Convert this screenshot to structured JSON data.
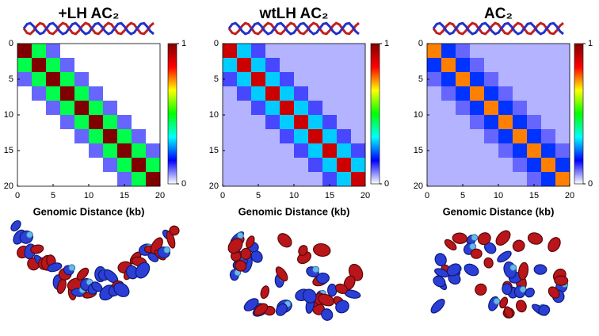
{
  "chart_data": [
    {
      "type": "heatmap",
      "title": "+LH AC₂",
      "xlabel": "Genomic Distance (kb)",
      "x": [
        1,
        3,
        5,
        7,
        9,
        11,
        13,
        15,
        17,
        19
      ],
      "y": [
        1,
        3,
        5,
        7,
        9,
        11,
        13,
        15,
        17,
        19
      ],
      "xlim": [
        0,
        20
      ],
      "ylim": [
        0,
        20
      ],
      "xticks": [
        0,
        5,
        10,
        15,
        20
      ],
      "yticks": [
        0,
        5,
        10,
        15,
        20
      ],
      "clim": [
        0,
        1
      ],
      "cticks": [
        0,
        1
      ],
      "colorscale": [
        "#ffffff",
        "#0000ff",
        "#00ffff",
        "#00ff00",
        "#ffff00",
        "#ff0000",
        "#800000"
      ],
      "z": [
        [
          1,
          0.45,
          0.1,
          0,
          0,
          0,
          0,
          0,
          0,
          0
        ],
        [
          0.45,
          1,
          0.45,
          0.1,
          0,
          0,
          0,
          0,
          0,
          0
        ],
        [
          0.1,
          0.45,
          1,
          0.45,
          0.1,
          0,
          0,
          0,
          0,
          0
        ],
        [
          0,
          0.1,
          0.45,
          1,
          0.45,
          0.1,
          0,
          0,
          0,
          0
        ],
        [
          0,
          0,
          0.1,
          0.45,
          1,
          0.45,
          0.1,
          0,
          0,
          0
        ],
        [
          0,
          0,
          0,
          0.1,
          0.45,
          1,
          0.45,
          0.1,
          0,
          0
        ],
        [
          0,
          0,
          0,
          0,
          0.1,
          0.45,
          1,
          0.45,
          0.1,
          0
        ],
        [
          0,
          0,
          0,
          0,
          0,
          0.1,
          0.45,
          1,
          0.45,
          0.1
        ],
        [
          0,
          0,
          0,
          0,
          0,
          0,
          0.1,
          0.45,
          1,
          0.45
        ],
        [
          0,
          0,
          0,
          0,
          0,
          0,
          0,
          0.1,
          0.45,
          1
        ]
      ]
    },
    {
      "type": "heatmap",
      "title": "wtLH AC₂",
      "xlabel": "Genomic Distance (kb)",
      "x": [
        1,
        3,
        5,
        7,
        9,
        11,
        13,
        15,
        17,
        19
      ],
      "y": [
        1,
        3,
        5,
        7,
        9,
        11,
        13,
        15,
        17,
        19
      ],
      "xlim": [
        0,
        20
      ],
      "ylim": [
        0,
        20
      ],
      "xticks": [
        0,
        5,
        10,
        15,
        20
      ],
      "yticks": [
        0,
        5,
        10,
        15,
        20
      ],
      "clim": [
        0,
        1
      ],
      "cticks": [
        0,
        1
      ],
      "colorscale": [
        "#ffffff",
        "#0000ff",
        "#00ffff",
        "#00ff00",
        "#ffff00",
        "#ff0000",
        "#800000"
      ],
      "z": [
        [
          0.9,
          0.3,
          0.12,
          0.05,
          0.05,
          0.05,
          0.05,
          0.05,
          0.05,
          0.05
        ],
        [
          0.3,
          0.9,
          0.3,
          0.12,
          0.05,
          0.05,
          0.05,
          0.05,
          0.05,
          0.05
        ],
        [
          0.12,
          0.3,
          0.9,
          0.3,
          0.12,
          0.05,
          0.05,
          0.05,
          0.05,
          0.05
        ],
        [
          0.05,
          0.12,
          0.3,
          0.9,
          0.3,
          0.12,
          0.05,
          0.05,
          0.05,
          0.05
        ],
        [
          0.05,
          0.05,
          0.12,
          0.3,
          0.9,
          0.3,
          0.12,
          0.05,
          0.05,
          0.05
        ],
        [
          0.05,
          0.05,
          0.05,
          0.12,
          0.3,
          0.9,
          0.3,
          0.12,
          0.05,
          0.05
        ],
        [
          0.05,
          0.05,
          0.05,
          0.05,
          0.12,
          0.3,
          0.9,
          0.3,
          0.12,
          0.05
        ],
        [
          0.05,
          0.05,
          0.05,
          0.05,
          0.05,
          0.12,
          0.3,
          0.9,
          0.3,
          0.12
        ],
        [
          0.05,
          0.05,
          0.05,
          0.05,
          0.05,
          0.05,
          0.12,
          0.3,
          0.9,
          0.3
        ],
        [
          0.05,
          0.05,
          0.05,
          0.05,
          0.05,
          0.05,
          0.05,
          0.12,
          0.3,
          0.9
        ]
      ]
    },
    {
      "type": "heatmap",
      "title": "AC₂",
      "xlabel": "Genomic Distance (kb)",
      "x": [
        1,
        3,
        5,
        7,
        9,
        11,
        13,
        15,
        17,
        19
      ],
      "y": [
        1,
        3,
        5,
        7,
        9,
        11,
        13,
        15,
        17,
        19
      ],
      "xlim": [
        0,
        20
      ],
      "ylim": [
        0,
        20
      ],
      "xticks": [
        0,
        5,
        10,
        15,
        20
      ],
      "yticks": [
        0,
        5,
        10,
        15,
        20
      ],
      "clim": [
        0,
        1
      ],
      "cticks": [
        0,
        1
      ],
      "colorscale": [
        "#ffffff",
        "#0000ff",
        "#00ffff",
        "#00ff00",
        "#ffff00",
        "#ff0000",
        "#800000"
      ],
      "z": [
        [
          0.75,
          0.2,
          0.1,
          0.05,
          0.05,
          0.05,
          0.05,
          0.05,
          0.05,
          0.05
        ],
        [
          0.2,
          0.75,
          0.2,
          0.1,
          0.05,
          0.05,
          0.05,
          0.05,
          0.05,
          0.05
        ],
        [
          0.1,
          0.2,
          0.75,
          0.2,
          0.1,
          0.05,
          0.05,
          0.05,
          0.05,
          0.05
        ],
        [
          0.05,
          0.1,
          0.2,
          0.75,
          0.2,
          0.1,
          0.05,
          0.05,
          0.05,
          0.05
        ],
        [
          0.05,
          0.05,
          0.1,
          0.2,
          0.75,
          0.2,
          0.1,
          0.05,
          0.05,
          0.05
        ],
        [
          0.05,
          0.05,
          0.05,
          0.1,
          0.2,
          0.75,
          0.2,
          0.1,
          0.05,
          0.05
        ],
        [
          0.05,
          0.05,
          0.05,
          0.05,
          0.1,
          0.2,
          0.75,
          0.2,
          0.1,
          0.05
        ],
        [
          0.05,
          0.05,
          0.05,
          0.05,
          0.05,
          0.1,
          0.2,
          0.75,
          0.2,
          0.1
        ],
        [
          0.05,
          0.05,
          0.05,
          0.05,
          0.05,
          0.05,
          0.1,
          0.2,
          0.75,
          0.2
        ],
        [
          0.05,
          0.05,
          0.05,
          0.05,
          0.05,
          0.05,
          0.05,
          0.1,
          0.2,
          0.75
        ]
      ]
    }
  ]
}
